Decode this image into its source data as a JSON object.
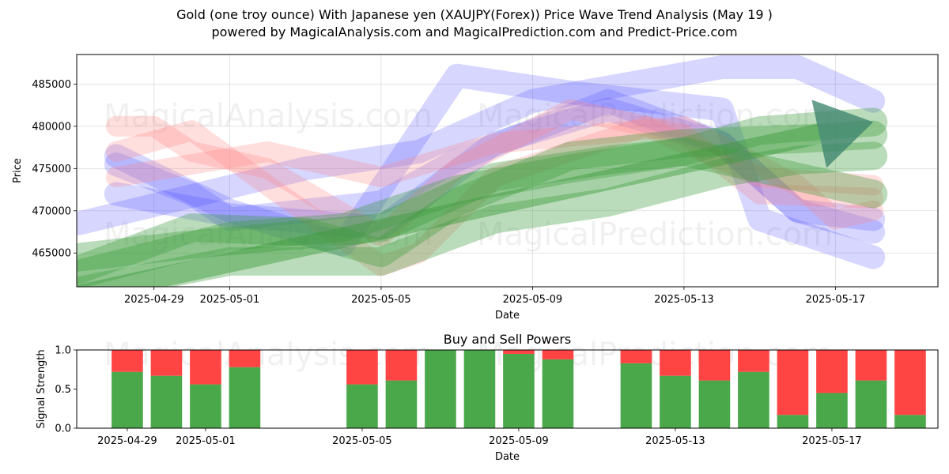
{
  "header": {
    "title": "Gold (one troy ounce) With Japanese yen (XAUJPY(Forex)) Price Wave Trend Analysis (May 19 )",
    "subtitle": "powered by MagicalAnalysis.com and MagicalPrediction.com and Predict-Price.com"
  },
  "watermarks": [
    "MagicalAnalysis.com",
    "MagicalPrediction.com"
  ],
  "colors": {
    "blue_band": "#4444ff",
    "red_band": "#ff8080",
    "green_band": "#3a9a3a",
    "buy": "#4aa84a",
    "sell": "#ff4444",
    "arrow_teal": "#3f7f7f"
  },
  "chart_data": [
    {
      "type": "area",
      "title": "",
      "xlabel": "Date",
      "ylabel": "Price",
      "x_tick_labels": [
        "2025-04-29",
        "2025-05-01",
        "2025-05-05",
        "2025-05-09",
        "2025-05-13",
        "2025-05-17"
      ],
      "y_tick_labels": [
        "465000",
        "470000",
        "475000",
        "480000",
        "485000"
      ],
      "y_ticks": [
        465000,
        470000,
        475000,
        480000,
        485000
      ],
      "ylim": [
        461000,
        488500
      ],
      "xlim": [
        "2025-04-26T23:00",
        "2025-05-19T17:00"
      ],
      "grid": true,
      "series": [
        {
          "group": "blue",
          "x": [
            "2025-04-27",
            "2025-05-03",
            "2025-05-06",
            "2025-05-09",
            "2025-05-14",
            "2025-05-16",
            "2025-05-18"
          ],
          "y": [
            468500,
            475000,
            477000,
            483000,
            487000,
            487000,
            483000
          ]
        },
        {
          "group": "blue",
          "x": [
            "2025-04-28",
            "2025-04-30",
            "2025-05-01",
            "2025-05-05",
            "2025-05-07",
            "2025-05-11",
            "2025-05-14",
            "2025-05-16",
            "2025-05-18"
          ],
          "y": [
            475500,
            472000,
            469000,
            471000,
            476000,
            483000,
            478000,
            470000,
            467500
          ]
        },
        {
          "group": "blue",
          "x": [
            "2025-04-28",
            "2025-05-01",
            "2025-05-04",
            "2025-05-07",
            "2025-05-10",
            "2025-05-14",
            "2025-05-15",
            "2025-05-18"
          ],
          "y": [
            476500,
            470000,
            466000,
            486000,
            484000,
            482000,
            469000,
            464500
          ]
        },
        {
          "group": "blue",
          "x": [
            "2025-04-28",
            "2025-05-01",
            "2025-05-05",
            "2025-05-08",
            "2025-05-11",
            "2025-05-14",
            "2025-05-16",
            "2025-05-18"
          ],
          "y": [
            472000,
            469500,
            468000,
            478000,
            482000,
            478000,
            470000,
            469000
          ]
        },
        {
          "group": "red",
          "x": [
            "2025-04-28",
            "2025-04-29",
            "2025-04-30",
            "2025-05-02",
            "2025-05-05",
            "2025-05-07",
            "2025-05-10",
            "2025-05-13",
            "2025-05-15",
            "2025-05-18"
          ],
          "y": [
            480000,
            480000,
            477000,
            475000,
            467000,
            475000,
            482000,
            479000,
            472000,
            471500
          ]
        },
        {
          "group": "red",
          "x": [
            "2025-04-28",
            "2025-04-30",
            "2025-05-02",
            "2025-05-05",
            "2025-05-06",
            "2025-05-08",
            "2025-05-12",
            "2025-05-15",
            "2025-05-18"
          ],
          "y": [
            477000,
            479500,
            473000,
            463500,
            465000,
            474000,
            480000,
            474000,
            473000
          ]
        },
        {
          "group": "red",
          "x": [
            "2025-04-28",
            "2025-05-02",
            "2025-05-05",
            "2025-05-08",
            "2025-05-13",
            "2025-05-16",
            "2025-05-17",
            "2025-05-18"
          ],
          "y": [
            474000,
            477000,
            474000,
            478000,
            480000,
            473000,
            469000,
            470000
          ]
        },
        {
          "group": "green",
          "x": [
            "2025-04-27",
            "2025-04-30",
            "2025-05-03",
            "2025-05-05",
            "2025-05-07",
            "2025-05-10",
            "2025-05-13",
            "2025-05-16",
            "2025-05-18"
          ],
          "y": [
            463000,
            468000,
            467500,
            465000,
            471000,
            476500,
            478000,
            478500,
            479000
          ]
        },
        {
          "group": "green",
          "x": [
            "2025-04-27",
            "2025-05-01",
            "2025-05-04",
            "2025-05-07",
            "2025-05-10",
            "2025-05-13",
            "2025-05-16",
            "2025-05-18"
          ],
          "y": [
            462500,
            467000,
            468000,
            472500,
            475000,
            477000,
            474000,
            472000
          ]
        },
        {
          "group": "green",
          "x": [
            "2025-04-27",
            "2025-05-01",
            "2025-05-05",
            "2025-05-08",
            "2025-05-11",
            "2025-05-14",
            "2025-05-16",
            "2025-05-18"
          ],
          "y": [
            460500,
            464000,
            464000,
            469000,
            471000,
            474500,
            476000,
            476500
          ]
        },
        {
          "group": "green",
          "x": [
            "2025-04-27",
            "2025-04-30",
            "2025-05-05",
            "2025-05-08",
            "2025-05-11",
            "2025-05-13",
            "2025-05-15",
            "2025-05-18"
          ],
          "y": [
            464500,
            466000,
            468000,
            474000,
            476000,
            477000,
            479500,
            480500
          ]
        }
      ],
      "arrow": {
        "x": [
          "2025-04-27",
          "2025-05-18"
        ],
        "y": [
          460000,
          480500
        ]
      }
    },
    {
      "type": "bar",
      "title": "Buy and Sell Powers",
      "xlabel": "Date",
      "ylabel": "Signal Strength",
      "x_tick_labels": [
        "2025-04-29",
        "2025-05-01",
        "2025-05-05",
        "2025-05-09",
        "2025-05-13",
        "2025-05-17"
      ],
      "y_tick_labels": [
        "0.0",
        "0.5",
        "1.0"
      ],
      "y_ticks": [
        0,
        0.5,
        1
      ],
      "ylim": [
        0,
        1
      ],
      "grid": false,
      "categories": [
        "2025-04-29",
        "2025-04-30",
        "2025-05-01",
        "2025-05-02",
        "2025-05-05",
        "2025-05-06",
        "2025-05-07",
        "2025-05-08",
        "2025-05-09",
        "2025-05-10",
        "2025-05-12",
        "2025-05-13",
        "2025-05-14",
        "2025-05-15",
        "2025-05-16",
        "2025-05-17",
        "2025-05-18",
        "2025-05-19"
      ],
      "series": [
        {
          "name": "Buy",
          "values": [
            0.72,
            0.67,
            0.56,
            0.78,
            0.56,
            0.61,
            1.0,
            1.0,
            0.95,
            0.88,
            0.83,
            0.67,
            0.61,
            0.72,
            0.17,
            0.45,
            0.61,
            0.17
          ]
        },
        {
          "name": "Sell",
          "values": [
            0.28,
            0.33,
            0.44,
            0.22,
            0.44,
            0.39,
            0.0,
            0.0,
            0.05,
            0.12,
            0.17,
            0.33,
            0.39,
            0.28,
            0.83,
            0.55,
            0.39,
            0.83
          ]
        }
      ]
    }
  ]
}
